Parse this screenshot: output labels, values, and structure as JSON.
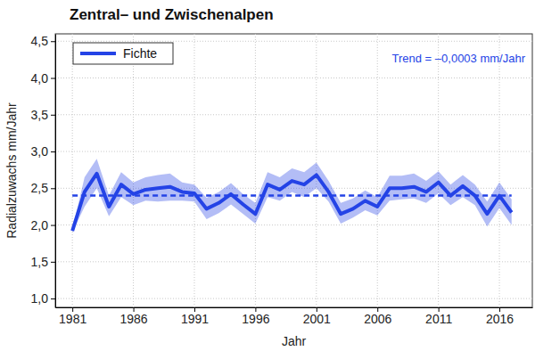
{
  "chart_data": {
    "type": "line",
    "title": "Zentral– und Zwischenalpen",
    "x_label": "Jahr",
    "y_label": "Radialzuwachs mm/Jahr",
    "x": [
      1981,
      1982,
      1983,
      1984,
      1985,
      1986,
      1987,
      1988,
      1989,
      1990,
      1991,
      1992,
      1993,
      1994,
      1995,
      1996,
      1997,
      1998,
      1999,
      2000,
      2001,
      2002,
      2003,
      2004,
      2005,
      2006,
      2007,
      2008,
      2009,
      2010,
      2011,
      2012,
      2013,
      2014,
      2015,
      2016,
      2017
    ],
    "series": [
      {
        "name": "Fichte",
        "color": "#2443e6",
        "values": [
          1.92,
          2.45,
          2.7,
          2.25,
          2.55,
          2.42,
          2.48,
          2.5,
          2.52,
          2.45,
          2.43,
          2.22,
          2.3,
          2.42,
          2.28,
          2.15,
          2.55,
          2.48,
          2.6,
          2.55,
          2.68,
          2.45,
          2.15,
          2.22,
          2.33,
          2.25,
          2.5,
          2.5,
          2.52,
          2.45,
          2.58,
          2.4,
          2.53,
          2.4,
          2.15,
          2.4,
          2.17
        ],
        "lower": [
          1.9,
          2.25,
          2.5,
          2.12,
          2.38,
          2.27,
          2.33,
          2.32,
          2.33,
          2.33,
          2.32,
          2.08,
          2.16,
          2.28,
          2.15,
          2.02,
          2.38,
          2.33,
          2.45,
          2.38,
          2.5,
          2.32,
          2.02,
          2.1,
          2.2,
          2.13,
          2.33,
          2.35,
          2.36,
          2.3,
          2.43,
          2.27,
          2.38,
          2.27,
          1.98,
          2.23,
          2.0
        ],
        "upper": [
          1.94,
          2.65,
          2.9,
          2.4,
          2.72,
          2.58,
          2.65,
          2.68,
          2.7,
          2.58,
          2.55,
          2.37,
          2.45,
          2.57,
          2.42,
          2.3,
          2.72,
          2.65,
          2.77,
          2.72,
          2.85,
          2.6,
          2.3,
          2.36,
          2.47,
          2.38,
          2.67,
          2.67,
          2.7,
          2.6,
          2.73,
          2.55,
          2.68,
          2.55,
          2.32,
          2.58,
          2.35
        ]
      }
    ],
    "trend": {
      "label": "Trend = –0,0003 mm/Jahr",
      "x": [
        1981,
        2017
      ],
      "values": [
        2.4,
        2.4
      ],
      "line_style": "dashed"
    },
    "xlim": [
      1979.6,
      2018.7
    ],
    "ylim": [
      0.88,
      4.6
    ],
    "xticks": [
      1981,
      1986,
      1991,
      1996,
      2001,
      2006,
      2011,
      2016
    ],
    "yticks": [
      {
        "value": 1.0,
        "label": "1,0"
      },
      {
        "value": 1.5,
        "label": "1,5"
      },
      {
        "value": 2.0,
        "label": "2,0"
      },
      {
        "value": 2.5,
        "label": "2,5"
      },
      {
        "value": 3.0,
        "label": "3,0"
      },
      {
        "value": 3.5,
        "label": "3,5"
      },
      {
        "value": 4.0,
        "label": "4,0"
      },
      {
        "value": 4.5,
        "label": "4,5"
      }
    ],
    "grid": true,
    "legend": "upper left"
  }
}
